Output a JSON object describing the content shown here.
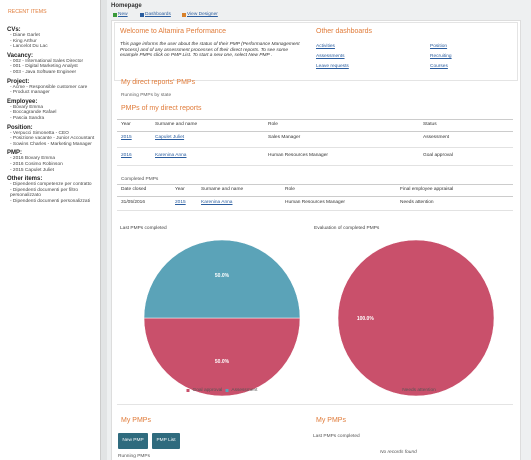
{
  "header": {
    "title": "Homepage",
    "links": [
      "New",
      "Dashboards",
      "View Designer"
    ]
  },
  "sidebar": {
    "title": "RECENT ITEMS",
    "groups": [
      {
        "label": "CVs:",
        "items": [
          "- Diane Garlet",
          "- King Arthur",
          "- Lancelot Du Lac"
        ]
      },
      {
        "label": "Vacancy:",
        "items": [
          "- 002 - International Sales Director",
          "- 001 - Digital Marketing Analyst",
          "- 003 - Java Software Engineer"
        ]
      },
      {
        "label": "Project:",
        "items": [
          "- Acme - Responsible customer care",
          "- Product manager"
        ]
      },
      {
        "label": "Employee:",
        "items": [
          "- Bovary Emma",
          "- Boccagrande Rafael",
          "- Pascia Sandra"
        ]
      },
      {
        "label": "Position:",
        "items": [
          "- Verpucci Simonetta - CEO",
          "- Posizione vacante - Junior Accountant",
          "- Sowins Charles - Marketing Manager"
        ]
      },
      {
        "label": "PMP:",
        "items": [
          "- 2016 Bovary Emma",
          "- 2016 Cosimo Robinson",
          "- 2015 Capulet Juliet"
        ]
      },
      {
        "label": "Other items:",
        "items": [
          "- Dipendenti competenze per contratto",
          "- Dipendenti documenti per filtro personalizzato",
          "- Dipendenti documenti personalizzati"
        ]
      }
    ]
  },
  "welcome": {
    "title": "Welcome to Altamira Performance",
    "text": "This page informs the user about the status of their PMP (Performance Management Process) and of any assessment processes of their direct reports. To see some example PMPs click on PMP List. To start a new one, select New PMP .",
    "other_title": "Other dashboards",
    "links": [
      "Activities",
      "Assessments",
      "Leave requests",
      "Position",
      "Recruiting",
      "Courses"
    ]
  },
  "direct_reports": {
    "title": "My direct reports' PMPs",
    "running_label": "Running PMPs by state",
    "table_title": "PMPs of my direct reports",
    "columns": [
      "Year",
      "Surname and name",
      "Role",
      "Status"
    ],
    "rows": [
      [
        "2015",
        "Capulet Juliet",
        "Sales Manager",
        "Assessment"
      ],
      [
        "2016",
        "Karenina Anna",
        "Human Resources Manager",
        "Goal approval"
      ]
    ]
  },
  "completed": {
    "title": "Completed PMPs",
    "columns": [
      "Date closed",
      "Year",
      "Surname and name",
      "Role",
      "Final employee appraisal"
    ],
    "rows": [
      [
        "31/05/2016",
        "2015",
        "Karenina Anna",
        "Human Resources Manager",
        "Needs attention"
      ]
    ]
  },
  "chart_data": [
    {
      "type": "pie",
      "title": "Last PMPs completed",
      "categories": [
        "Goal approval",
        "Assessment"
      ],
      "values": [
        50,
        50
      ],
      "value_labels": [
        "50.0%",
        "50.0%"
      ],
      "colors": [
        "#c9506b",
        "#5ba3b8"
      ]
    },
    {
      "type": "pie",
      "title": "Evaluation of completed PMPs",
      "categories": [
        "Needs attention"
      ],
      "values": [
        100
      ],
      "value_labels": [
        "100.0%"
      ],
      "colors": [
        "#c9506b"
      ]
    }
  ],
  "my_pmps": {
    "title": "My PMPs",
    "buttons": [
      "New PMP",
      "PMP List"
    ],
    "running_label": "Running PMPs",
    "right_title": "My PMPs",
    "right_subtitle": "Last PMPs completed",
    "empty": "No records found"
  }
}
